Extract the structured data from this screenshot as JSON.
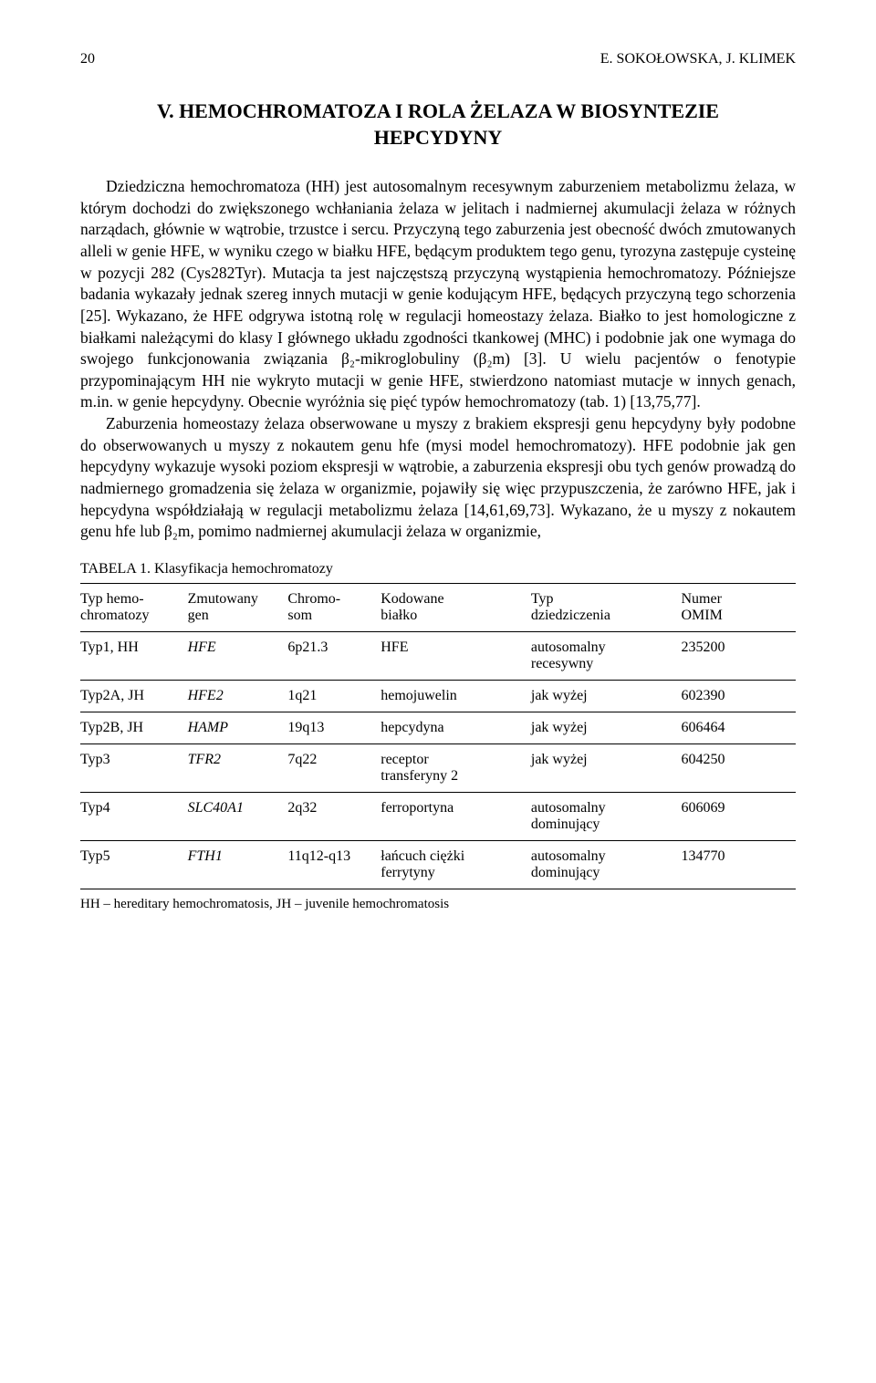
{
  "header": {
    "page_number": "20",
    "running_head": "E. SOKOŁOWSKA, J. KLIMEK"
  },
  "section": {
    "title_line1": "V. HEMOCHROMATOZA I ROLA ŻELAZA W BIOSYNTEZIE",
    "title_line2": "HEPCYDYNY"
  },
  "paragraphs": {
    "p1": "Dziedziczna hemochromatoza (HH) jest autosomalnym recesywnym zaburzeniem metabolizmu żelaza, w którym dochodzi do zwiększonego wchłaniania żelaza w jelitach i nadmiernej akumulacji żelaza w różnych narządach, głównie w wątrobie, trzustce i sercu. Przyczyną tego zaburzenia jest obecność dwóch zmutowanych alleli w genie HFE, w wyniku czego w białku HFE, będącym produktem tego genu, tyrozyna zastępuje cysteinę w pozycji 282 (Cys282Tyr). Mutacja ta jest najczęstszą przyczyną wystąpienia hemochromatozy. Późniejsze badania wykazały jednak szereg innych mutacji w genie kodującym HFE, będących przyczyną tego schorzenia [25]. Wykazano, że HFE odgrywa istotną rolę w regulacji homeostazy żelaza. Białko to jest homologiczne z białkami należącymi do klasy I głównego układu zgodności tkankowej (MHC) i podobnie jak one wymaga do swojego funkcjonowania związania β₂-mikroglobuliny (β₂m) [3]. U wielu pacjentów o fenotypie przypominającym HH nie wykryto mutacji w genie HFE, stwierdzono natomiast mutacje w innych genach, m.in. w genie hepcydyny. Obecnie wyróżnia się pięć typów hemochromatozy (tab. 1) [13,75,77].",
    "p2": "Zaburzenia homeostazy żelaza obserwowane u myszy z brakiem ekspresji genu hepcydyny były podobne do obserwowanych u myszy z nokautem genu hfe (mysi model hemochromatozy). HFE podobnie jak gen hepcydyny wykazuje wysoki poziom ekspresji w wątrobie, a zaburzenia ekspresji obu tych genów prowadzą do nadmiernego gromadzenia się żelaza w organizmie, pojawiły się więc przypuszczenia, że zarówno HFE, jak i hepcydyna współdziałają w regulacji metabolizmu żelaza [14,61,69,73]. Wykazano, że u myszy z nokautem genu hfe lub β₂m, pomimo nadmiernej akumulacji żelaza w organizmie,"
  },
  "table": {
    "caption": "TABELA 1. Klasyfikacja hemochromatozy",
    "columns": [
      {
        "line1": "Typ hemo-",
        "line2": "chromatozy",
        "width": "15%"
      },
      {
        "line1": "Zmutowany",
        "line2": "gen",
        "width": "14%"
      },
      {
        "line1": "Chromo-",
        "line2": "som",
        "width": "13%"
      },
      {
        "line1": "Kodowane",
        "line2": "białko",
        "width": "21%"
      },
      {
        "line1": "Typ",
        "line2": "dziedziczenia",
        "width": "21%"
      },
      {
        "line1": "Numer",
        "line2": "OMIM",
        "width": "16%"
      }
    ],
    "rows": [
      {
        "type": "Typ1, HH",
        "gene": "HFE",
        "chrom": "6p21.3",
        "protein": "HFE",
        "inh_l1": "autosomalny",
        "inh_l2": "recesywny",
        "omim": "235200"
      },
      {
        "type": "Typ2A, JH",
        "gene": "HFE2",
        "chrom": "1q21",
        "protein": "hemojuwelin",
        "inh_l1": "jak wyżej",
        "inh_l2": "",
        "omim": "602390"
      },
      {
        "type": "Typ2B, JH",
        "gene": "HAMP",
        "chrom": "19q13",
        "protein": "hepcydyna",
        "inh_l1": "jak wyżej",
        "inh_l2": "",
        "omim": "606464"
      },
      {
        "type": "Typ3",
        "gene": "TFR2",
        "chrom": "7q22",
        "protein_l1": "receptor",
        "protein_l2": "transferyny 2",
        "inh_l1": "jak wyżej",
        "inh_l2": "",
        "omim": "604250"
      },
      {
        "type": "Typ4",
        "gene": "SLC40A1",
        "chrom": "2q32",
        "protein": "ferroportyna",
        "inh_l1": "autosomalny",
        "inh_l2": "dominujący",
        "omim": "606069"
      },
      {
        "type": "Typ5",
        "gene": "FTH1",
        "chrom": "11q12-q13",
        "protein_l1": "łańcuch ciężki",
        "protein_l2": "ferrytyny",
        "inh_l1": "autosomalny",
        "inh_l2": "dominujący",
        "omim": "134770"
      }
    ],
    "footnote": "HH – hereditary hemochromatosis, JH – juvenile hemochromatosis"
  }
}
